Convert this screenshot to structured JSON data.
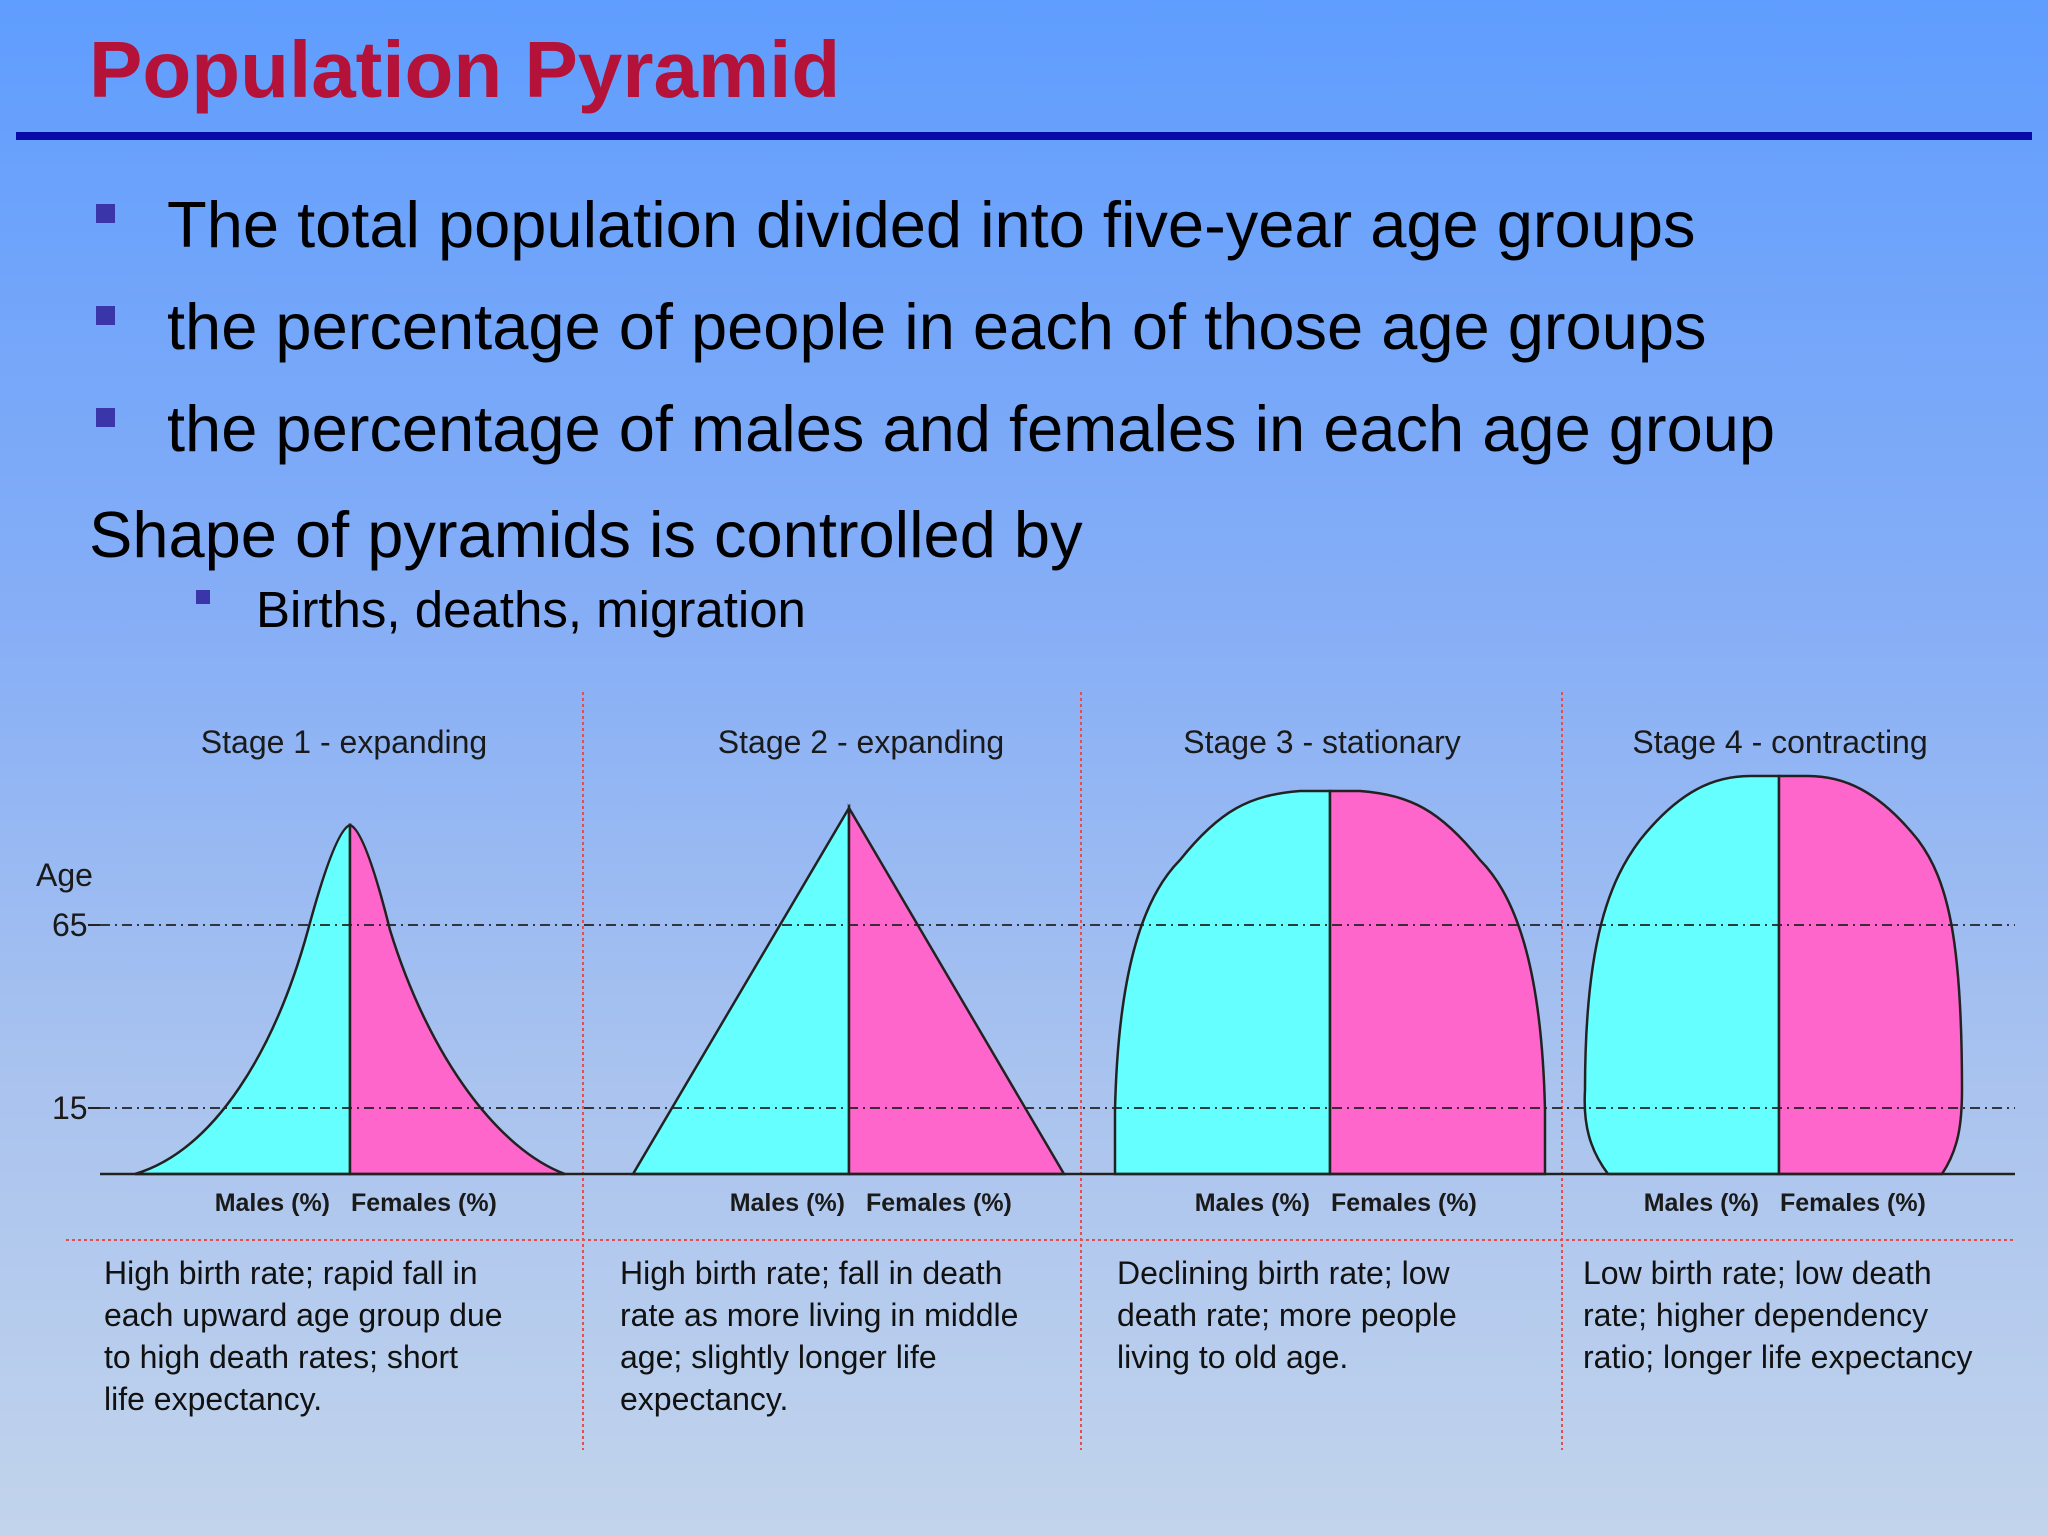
{
  "slide": {
    "title": "Population Pyramid",
    "bullets": [
      "The total population divided into five-year age groups",
      "the percentage of people in each of those age groups",
      "the percentage of males and females in each age group"
    ],
    "subheading": "Shape of pyramids is controlled by",
    "subbullets": [
      "Births, deaths, migration"
    ]
  },
  "diagram": {
    "age_axis_label": "Age",
    "age_ticks": [
      "65",
      "15"
    ],
    "male_label": "Males (%)",
    "female_label": "Females (%)",
    "colors": {
      "male": "#66ffff",
      "female": "#ff66cc",
      "title": "#b5123a",
      "rule": "#0a0aa8",
      "divider": "#e05050"
    },
    "stages": [
      {
        "label": "Stage 1 - expanding",
        "shape": "concave-narrow",
        "description": [
          "High birth rate; rapid fall in",
          "each upward age group due",
          "to high death rates; short",
          "life expectancy."
        ]
      },
      {
        "label": "Stage 2 - expanding",
        "shape": "triangle",
        "description": [
          "High birth rate; fall in death",
          "rate as more living in middle",
          "age; slightly longer life",
          "expectancy."
        ]
      },
      {
        "label": "Stage 3 - stationary",
        "shape": "dome",
        "description": [
          "Declining birth rate; low",
          "death rate; more people",
          "living to old age."
        ]
      },
      {
        "label": "Stage 4 - contracting",
        "shape": "dome-narrow-base",
        "description": [
          "Low birth rate; low death",
          "rate; higher dependency",
          "ratio; longer life expectancy"
        ]
      }
    ]
  }
}
